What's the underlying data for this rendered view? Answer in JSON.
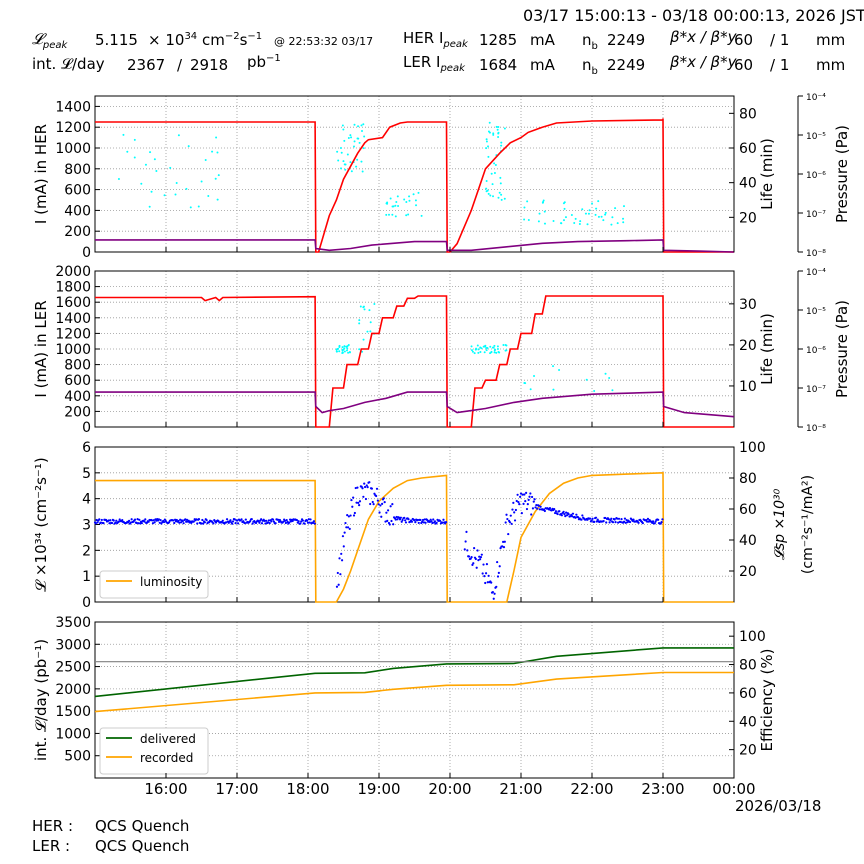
{
  "header": {
    "time_range": "03/17 15:00:13 - 03/18 00:00:13, 2026 JST",
    "lpeak_label": "𝓛",
    "lpeak_sub": "peak",
    "lpeak_value": "5.115",
    "lpeak_unit_pre": "× 10",
    "lpeak_exp": "34",
    "lpeak_unit": "cm",
    "lpeak_unit_e1": "−2",
    "lpeak_unit_mid": "s",
    "lpeak_unit_e2": "−1",
    "lpeak_at": "@ 22:53:32 03/17",
    "intl_label": "int. 𝓛/day",
    "intl_value1": "2367",
    "intl_slash": "/",
    "intl_value2": "2918",
    "intl_unit": "pb",
    "intl_unit_exp": "−1",
    "her_ipeak_label": "HER I",
    "her_ipeak_sub": "peak",
    "her_ipeak_value": "1285",
    "her_ipeak_unit": "mA",
    "ler_ipeak_label": "LER I",
    "ler_ipeak_sub": "peak",
    "ler_ipeak_value": "1684",
    "ler_ipeak_unit": "mA",
    "nb_label": "n",
    "nb_sub": "b",
    "nb_her": "2249",
    "nb_ler": "2249",
    "beta_label": "β*x / β*y",
    "beta_her_x": "60",
    "beta_her_y": "/ 1",
    "beta_her_unit": "mm",
    "beta_ler_x": "60",
    "beta_ler_y": "/ 1",
    "beta_ler_unit": "mm"
  },
  "footer": {
    "her_label": "HER :",
    "her_status": "QCS Quench",
    "ler_label": "LER :",
    "ler_status": "QCS Quench",
    "date": "2026/03/18"
  },
  "colors": {
    "current": "#ff0000",
    "life": "#800080",
    "pressure": "#00ffff",
    "luminosity": "#ffa500",
    "specific": "#0000ff",
    "delivered": "#006400",
    "recorded": "#ffa500",
    "efficiency": "#808080"
  },
  "chart_data": [
    {
      "type": "line",
      "panel": "HER",
      "ylabel": "I (mA) in HER",
      "ylim": [
        0,
        1500
      ],
      "yticks": [
        "0",
        "200",
        "400",
        "600",
        "800",
        "1000",
        "1200",
        "1400"
      ],
      "y2label": "Life (min)",
      "y2lim": [
        0,
        90
      ],
      "y2ticks": [
        "20",
        "40",
        "60",
        "80"
      ],
      "y3label": "Pressure (Pa)",
      "y3ticks": [
        "10⁻⁸",
        "10⁻⁷",
        "10⁻⁶",
        "10⁻⁵",
        "10⁻⁴"
      ],
      "x_unit": "hours since 15:00",
      "series": [
        {
          "key": "current",
          "x": [
            0,
            3.1,
            3.11,
            3.15,
            3.3,
            3.4,
            3.5,
            3.7,
            3.8,
            3.85,
            4.05,
            4.15,
            4.3,
            4.4,
            4.5,
            4.55,
            4.95,
            4.96,
            5.0,
            5.1,
            5.3,
            5.4,
            5.5,
            5.7,
            5.85,
            6.0,
            6.1,
            6.3,
            6.5,
            7.0,
            8.0,
            8.0,
            8.01,
            9.0
          ],
          "y": [
            1250,
            1250,
            0,
            0,
            350,
            500,
            700,
            950,
            1050,
            1080,
            1100,
            1200,
            1240,
            1250,
            1250,
            1250,
            1250,
            0,
            0,
            80,
            400,
            600,
            800,
            950,
            1050,
            1100,
            1150,
            1200,
            1240,
            1260,
            1270,
            1285,
            0,
            0
          ]
        },
        {
          "key": "life",
          "x": [
            0,
            3.1,
            3.11,
            3.3,
            3.6,
            3.9,
            4.2,
            4.5,
            4.95,
            4.96,
            5.3,
            5.8,
            6.3,
            6.8,
            7.5,
            8.0,
            8.01,
            8.5,
            9.0
          ],
          "y": [
            7,
            7,
            2,
            1,
            2,
            4,
            5,
            6,
            6,
            1,
            1,
            3,
            5,
            6,
            6.5,
            7,
            1,
            0.5,
            0
          ]
        }
      ]
    },
    {
      "type": "line",
      "panel": "LER",
      "ylabel": "I (mA) in LER",
      "ylim": [
        0,
        2000
      ],
      "yticks": [
        "0",
        "200",
        "400",
        "600",
        "800",
        "1000",
        "1200",
        "1400",
        "1600",
        "1800",
        "2000"
      ],
      "y2label": "Life (min)",
      "y2lim": [
        0,
        38
      ],
      "y2ticks": [
        "10",
        "20",
        "30"
      ],
      "y3label": "Pressure (Pa)",
      "y3ticks": [
        "10⁻⁸",
        "10⁻⁷",
        "10⁻⁶",
        "10⁻⁵",
        "10⁻⁴"
      ],
      "x_unit": "hours since 15:00",
      "series": [
        {
          "key": "current",
          "x": [
            0,
            1.5,
            1.55,
            1.7,
            1.75,
            1.8,
            3.1,
            3.11,
            3.3,
            3.35,
            3.5,
            3.55,
            3.7,
            3.75,
            3.85,
            3.9,
            4.0,
            4.05,
            4.2,
            4.25,
            4.35,
            4.4,
            4.5,
            4.55,
            4.95,
            4.96,
            5.3,
            5.35,
            5.45,
            5.5,
            5.65,
            5.7,
            5.8,
            5.85,
            5.95,
            6.0,
            6.15,
            6.2,
            6.3,
            6.35,
            8.0,
            8.01,
            9.0
          ],
          "y": [
            1660,
            1660,
            1620,
            1660,
            1620,
            1660,
            1670,
            0,
            0,
            500,
            500,
            800,
            800,
            1000,
            1000,
            1200,
            1200,
            1400,
            1400,
            1550,
            1550,
            1650,
            1650,
            1680,
            1680,
            0,
            0,
            500,
            500,
            600,
            600,
            800,
            800,
            1000,
            1000,
            1200,
            1200,
            1450,
            1450,
            1680,
            1680,
            0,
            0
          ]
        },
        {
          "key": "life",
          "x": [
            0,
            3.1,
            3.11,
            3.2,
            3.3,
            3.5,
            3.8,
            4.1,
            4.4,
            4.95,
            4.96,
            5.1,
            5.3,
            5.5,
            5.9,
            6.3,
            7.0,
            8.0,
            8.01,
            8.3,
            9.0
          ],
          "y": [
            8.5,
            8.5,
            5,
            3.5,
            4,
            4.5,
            6,
            7,
            8.5,
            8.5,
            5,
            3.5,
            4,
            4.5,
            6,
            7,
            8,
            8.5,
            5,
            3.5,
            2.5
          ]
        }
      ]
    },
    {
      "type": "line",
      "panel": "Luminosity",
      "ylabel": "𝓛 ×10³⁴ (cm⁻²s⁻¹)",
      "ylim": [
        0,
        6
      ],
      "yticks": [
        "0",
        "1",
        "2",
        "3",
        "4",
        "5",
        "6"
      ],
      "y2label": "𝓛sp ×10³⁰ (cm⁻²s⁻¹/mA²)",
      "y2lim": [
        0,
        100
      ],
      "y2ticks": [
        "20",
        "40",
        "60",
        "80",
        "100"
      ],
      "legend": [
        "luminosity"
      ],
      "series": [
        {
          "key": "luminosity",
          "name": "luminosity",
          "x": [
            0,
            3.1,
            3.11,
            3.4,
            3.5,
            3.6,
            3.7,
            3.85,
            4.0,
            4.2,
            4.4,
            4.6,
            4.95,
            4.96,
            5.8,
            5.9,
            6.0,
            6.2,
            6.4,
            6.6,
            6.8,
            7.0,
            7.5,
            8.0,
            8.01,
            9.0
          ],
          "y": [
            4.7,
            4.7,
            0,
            0,
            0.5,
            1.2,
            2.0,
            3.2,
            3.9,
            4.4,
            4.7,
            4.8,
            4.9,
            0,
            0,
            1.2,
            2.5,
            3.5,
            4.2,
            4.6,
            4.8,
            4.9,
            4.95,
            5.0,
            0,
            0
          ]
        },
        {
          "key": "specific",
          "x": [
            0,
            3.1,
            3.4,
            3.55,
            3.7,
            3.85,
            3.95,
            4.1,
            4.3,
            4.6,
            4.95,
            5.2,
            5.35,
            5.5,
            5.6,
            5.8,
            6.0,
            6.2,
            6.5,
            7.0,
            8.0
          ],
          "y": [
            52,
            52,
            10,
            50,
            70,
            70,
            68,
            58,
            53,
            52,
            52,
            40,
            28,
            20,
            5,
            50,
            65,
            62,
            58,
            53,
            52
          ]
        }
      ]
    },
    {
      "type": "line",
      "panel": "Integrated",
      "ylabel": "int. 𝓛/day (pb⁻¹)",
      "ylim": [
        0,
        3500
      ],
      "yticks": [
        "500",
        "1000",
        "1500",
        "2000",
        "2500",
        "3000",
        "3500"
      ],
      "y2label": "Efficiency (%)",
      "y2lim": [
        0,
        110
      ],
      "y2ticks": [
        "20",
        "40",
        "60",
        "80",
        "100"
      ],
      "xticks": [
        "16:00",
        "17:00",
        "18:00",
        "19:00",
        "20:00",
        "21:00",
        "22:00",
        "23:00",
        "00:00"
      ],
      "legend": [
        "delivered",
        "recorded"
      ],
      "series": [
        {
          "key": "delivered",
          "name": "delivered",
          "x": [
            0,
            3.1,
            3.8,
            4.2,
            4.95,
            5.9,
            6.5,
            8.0,
            9.0
          ],
          "y": [
            1830,
            2350,
            2360,
            2460,
            2560,
            2570,
            2730,
            2918,
            2918
          ]
        },
        {
          "key": "recorded",
          "name": "recorded",
          "x": [
            0,
            3.1,
            3.8,
            4.2,
            4.95,
            5.9,
            6.5,
            8.0,
            9.0
          ],
          "y": [
            1490,
            1910,
            1920,
            1990,
            2080,
            2090,
            2220,
            2367,
            2367
          ]
        },
        {
          "key": "efficiency",
          "x": [
            0,
            9.0
          ],
          "y": [
            82,
            82
          ]
        }
      ]
    }
  ]
}
